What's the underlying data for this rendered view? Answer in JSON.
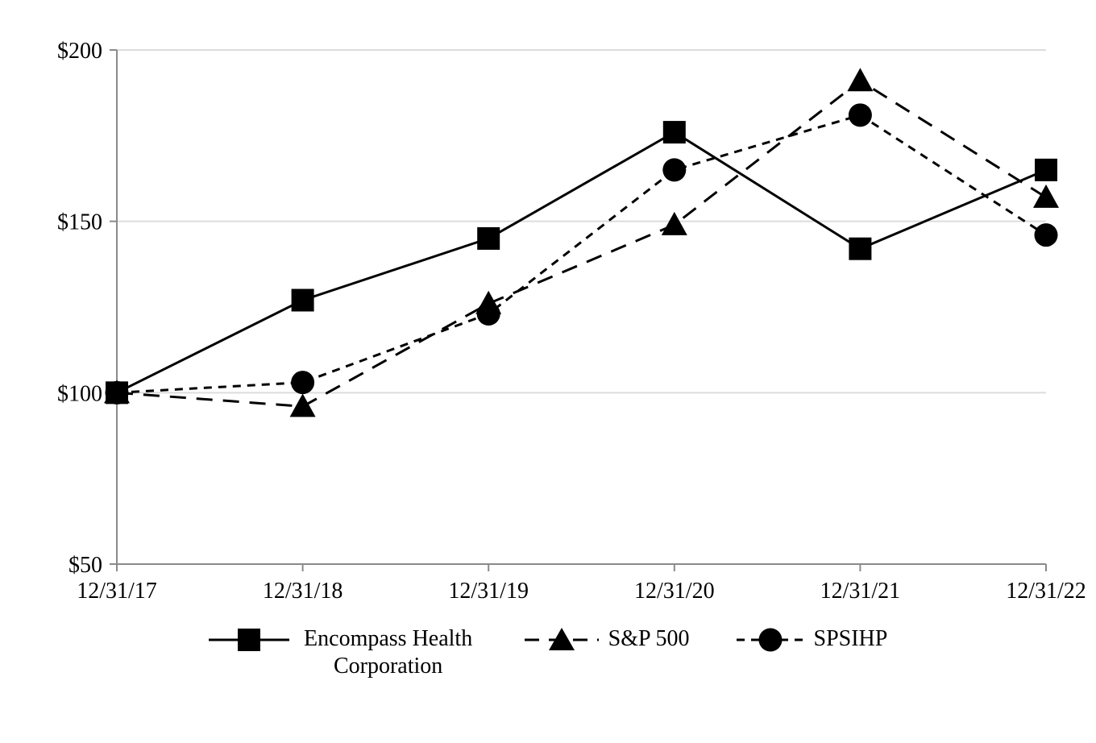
{
  "chart_data": {
    "type": "line",
    "title": "",
    "xlabel": "",
    "ylabel": "",
    "x_labels": [
      "12/31/17",
      "12/31/18",
      "12/31/19",
      "12/31/20",
      "12/31/21",
      "12/31/22"
    ],
    "y_ticks": [
      "$50",
      "$100",
      "$150",
      "$200"
    ],
    "y_tick_values": [
      50,
      100,
      150,
      200
    ],
    "ylim": [
      50,
      200
    ],
    "grid": true,
    "legend_position": "bottom",
    "series": [
      {
        "name": "Encompass Health Corporation",
        "marker": "square",
        "line_style": "solid",
        "values": [
          100,
          127,
          145,
          176,
          142,
          165
        ]
      },
      {
        "name": "S&P 500",
        "marker": "triangle",
        "line_style": "long-dash",
        "values": [
          100,
          96,
          126,
          149,
          191,
          157
        ]
      },
      {
        "name": "SPSIHP",
        "marker": "circle",
        "line_style": "short-dash",
        "values": [
          100,
          103,
          123,
          165,
          181,
          146
        ]
      }
    ],
    "colors": {
      "series": "#000000",
      "gridline": "#dcdcdc",
      "axis": "#8a8a8a",
      "text": "#000000",
      "background": "#ffffff"
    }
  }
}
